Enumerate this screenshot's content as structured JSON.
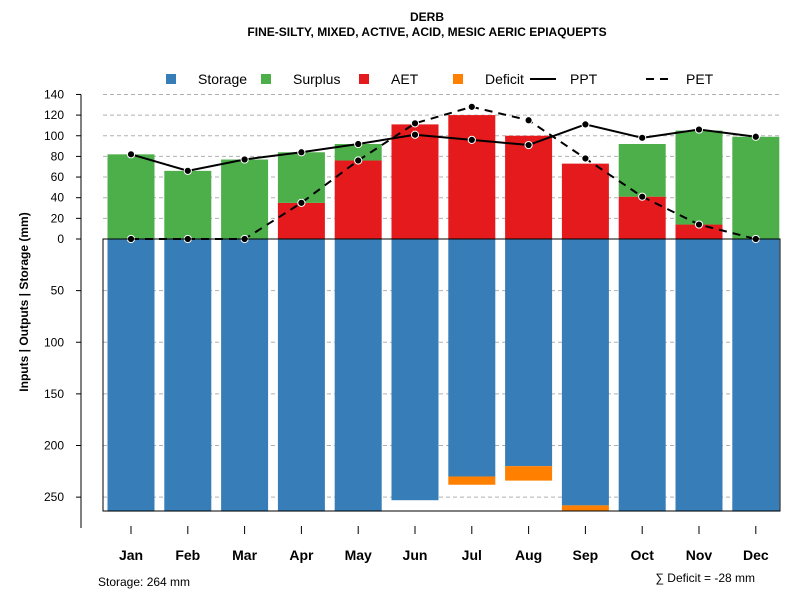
{
  "chart_data": {
    "type": "bar",
    "title": "DERB",
    "subtitle": "FINE-SILTY, MIXED, ACTIVE, ACID, MESIC AERIC EPIAQUEPTS",
    "ylabel": "Inputs | Outputs | Storage    (mm)",
    "categories": [
      "Jan",
      "Feb",
      "Mar",
      "Apr",
      "May",
      "Jun",
      "Jul",
      "Aug",
      "Sep",
      "Oct",
      "Nov",
      "Dec"
    ],
    "ylim": [
      -265,
      140
    ],
    "yticks_positive": [
      "140",
      "120",
      "100",
      "80",
      "60",
      "40",
      "20",
      "0"
    ],
    "yticks_negative": [
      "50",
      "100",
      "150",
      "200",
      "250"
    ],
    "legend": [
      {
        "label": "Storage",
        "kind": "box",
        "color": "#377EB8"
      },
      {
        "label": "Surplus",
        "kind": "box",
        "color": "#4DAF4A"
      },
      {
        "label": "AET",
        "kind": "box",
        "color": "#E41A1C"
      },
      {
        "label": "Deficit",
        "kind": "box",
        "color": "#FF7F00"
      },
      {
        "label": "PPT",
        "kind": "solid"
      },
      {
        "label": "PET",
        "kind": "dashed"
      }
    ],
    "series": [
      {
        "name": "AET",
        "color": "#E41A1C",
        "values": [
          0,
          0,
          0,
          35,
          76,
          111,
          120,
          100,
          73,
          41,
          14,
          0
        ]
      },
      {
        "name": "Surplus",
        "color": "#4DAF4A",
        "values": [
          82,
          66,
          77,
          49,
          16,
          0,
          0,
          0,
          0,
          51,
          91,
          99
        ]
      },
      {
        "name": "Storage",
        "color": "#377EB8",
        "values": [
          264,
          264,
          264,
          264,
          264,
          253,
          230,
          220,
          258,
          264,
          264,
          264
        ]
      },
      {
        "name": "Deficit",
        "color": "#FF7F00",
        "values": [
          0,
          0,
          0,
          0,
          0,
          0,
          8,
          14,
          5,
          0,
          0,
          0
        ]
      },
      {
        "name": "PPT",
        "style": "solid",
        "values": [
          82,
          66,
          77,
          84,
          92,
          101,
          96,
          91,
          111,
          98,
          106,
          99
        ]
      },
      {
        "name": "PET",
        "style": "dashed",
        "values": [
          0,
          0,
          0,
          35,
          76,
          112,
          128,
          115,
          78,
          41,
          14,
          0
        ]
      }
    ],
    "storage_note": "Storage: 264 mm",
    "deficit_note": "∑ Deficit = -28 mm"
  }
}
